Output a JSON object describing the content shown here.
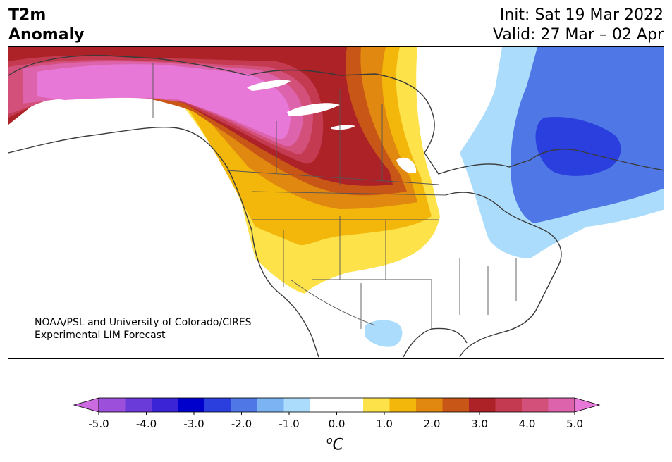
{
  "title": {
    "line1": "T2m",
    "line2": "Anomaly"
  },
  "init": "Init: Sat 19 Mar 2022",
  "valid": "Valid: 27 Mar – 02 Apr",
  "credit": {
    "line1": "NOAA/PSL and University of Colorado/CIRES",
    "line2": "Experimental LIM Forecast"
  },
  "colorbar": {
    "ticks": [
      "-5.0",
      "-4.0",
      "-3.0",
      "-2.0",
      "-1.0",
      "0.0",
      "1.0",
      "2.0",
      "3.0",
      "4.0",
      "5.0"
    ],
    "colors": [
      "#cc6adf",
      "#9c4fdb",
      "#6a3bd9",
      "#3a24d6",
      "#0000cc",
      "#2a3fdd",
      "#4f78e6",
      "#7cb3f2",
      "#acdcfb",
      "#ffffff",
      "#ffffff",
      "#fde24a",
      "#f2b70a",
      "#e0880f",
      "#c85616",
      "#ad2226",
      "#c43a50",
      "#d3507a",
      "#dd64ac",
      "#e878d8"
    ],
    "min": -5.0,
    "max": 5.0,
    "unit": "C",
    "unit_prefix": "o"
  }
}
